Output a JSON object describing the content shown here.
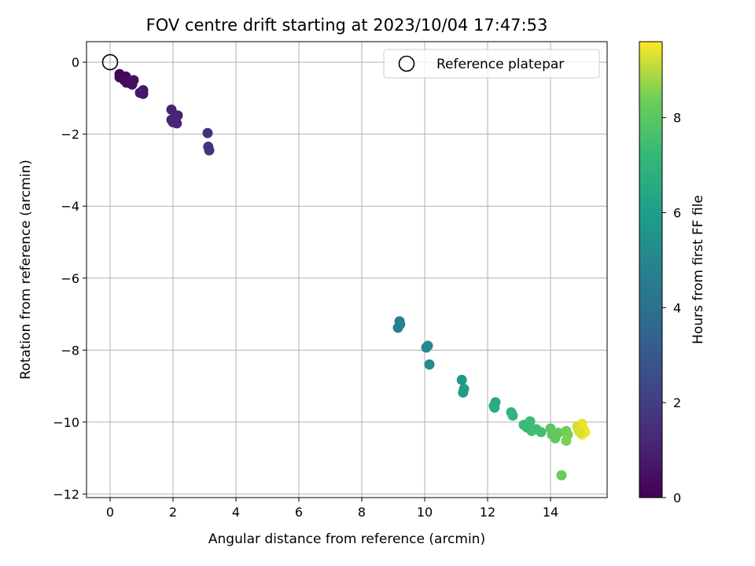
{
  "chart_data": {
    "type": "scatter",
    "title": "FOV centre drift starting at 2023/10/04 17:47:53",
    "xlabel": "Angular distance from reference (arcmin)",
    "ylabel": "Rotation from reference (arcmin)",
    "xlim": [
      -0.75,
      15.8
    ],
    "ylim": [
      -12.1,
      0.57
    ],
    "xticks": [
      0,
      2,
      4,
      6,
      8,
      10,
      12,
      14
    ],
    "xtick_labels": [
      "0",
      "2",
      "4",
      "6",
      "8",
      "10",
      "12",
      "14"
    ],
    "yticks": [
      0,
      -2,
      -4,
      -6,
      -8,
      -10,
      -12
    ],
    "ytick_labels": [
      "0",
      "−2",
      "−4",
      "−6",
      "−8",
      "−10",
      "−12"
    ],
    "grid": true,
    "legend": {
      "placement": "top-right",
      "entries": [
        "Reference platepar"
      ]
    },
    "reference_point": {
      "x": 0,
      "y": 0
    },
    "colorbar": {
      "label": "Hours from first FF file",
      "colormap": "viridis",
      "range": [
        0,
        9.6
      ],
      "ticks": [
        0,
        2,
        4,
        6,
        8
      ],
      "tick_labels": [
        "0",
        "2",
        "4",
        "6",
        "8"
      ]
    },
    "points": [
      {
        "x": 0.3,
        "y": -0.33,
        "h": 0.05
      },
      {
        "x": 0.35,
        "y": -0.4,
        "h": 0.1
      },
      {
        "x": 0.3,
        "y": -0.42,
        "h": 0.15
      },
      {
        "x": 0.45,
        "y": -0.5,
        "h": 0.2
      },
      {
        "x": 0.5,
        "y": -0.4,
        "h": 0.25
      },
      {
        "x": 0.52,
        "y": -0.57,
        "h": 0.3
      },
      {
        "x": 0.6,
        "y": -0.52,
        "h": 0.35
      },
      {
        "x": 0.7,
        "y": -0.62,
        "h": 0.4
      },
      {
        "x": 0.75,
        "y": -0.5,
        "h": 0.45
      },
      {
        "x": 1.05,
        "y": -0.78,
        "h": 0.6
      },
      {
        "x": 1.05,
        "y": -0.88,
        "h": 0.65
      },
      {
        "x": 0.95,
        "y": -0.85,
        "h": 0.7
      },
      {
        "x": 1.95,
        "y": -1.32,
        "h": 1.0
      },
      {
        "x": 2.15,
        "y": -1.48,
        "h": 1.05
      },
      {
        "x": 1.95,
        "y": -1.6,
        "h": 1.1
      },
      {
        "x": 2.0,
        "y": -1.67,
        "h": 1.15
      },
      {
        "x": 2.12,
        "y": -1.7,
        "h": 1.2
      },
      {
        "x": 2.05,
        "y": -1.63,
        "h": 1.15
      },
      {
        "x": 3.1,
        "y": -1.97,
        "h": 1.55
      },
      {
        "x": 3.12,
        "y": -2.35,
        "h": 1.6
      },
      {
        "x": 3.15,
        "y": -2.45,
        "h": 1.65
      },
      {
        "x": 9.2,
        "y": -7.2,
        "h": 4.65
      },
      {
        "x": 9.22,
        "y": -7.28,
        "h": 4.7
      },
      {
        "x": 9.15,
        "y": -7.38,
        "h": 4.75
      },
      {
        "x": 10.1,
        "y": -7.88,
        "h": 5.0
      },
      {
        "x": 10.05,
        "y": -7.93,
        "h": 5.05
      },
      {
        "x": 10.15,
        "y": -8.4,
        "h": 5.15
      },
      {
        "x": 11.18,
        "y": -8.83,
        "h": 5.8
      },
      {
        "x": 11.25,
        "y": -9.08,
        "h": 5.85
      },
      {
        "x": 11.22,
        "y": -9.18,
        "h": 5.9
      },
      {
        "x": 12.25,
        "y": -9.45,
        "h": 6.5
      },
      {
        "x": 12.2,
        "y": -9.55,
        "h": 6.55
      },
      {
        "x": 12.22,
        "y": -9.6,
        "h": 6.6
      },
      {
        "x": 12.75,
        "y": -9.73,
        "h": 7.0
      },
      {
        "x": 12.8,
        "y": -9.82,
        "h": 7.05
      },
      {
        "x": 13.15,
        "y": -10.08,
        "h": 7.3
      },
      {
        "x": 13.25,
        "y": -10.15,
        "h": 7.35
      },
      {
        "x": 13.35,
        "y": -9.98,
        "h": 7.4
      },
      {
        "x": 13.4,
        "y": -10.25,
        "h": 7.45
      },
      {
        "x": 13.55,
        "y": -10.2,
        "h": 7.5
      },
      {
        "x": 13.7,
        "y": -10.28,
        "h": 7.55
      },
      {
        "x": 14.0,
        "y": -10.18,
        "h": 8.0
      },
      {
        "x": 14.05,
        "y": -10.35,
        "h": 8.05
      },
      {
        "x": 14.15,
        "y": -10.45,
        "h": 8.1
      },
      {
        "x": 14.25,
        "y": -10.3,
        "h": 8.15
      },
      {
        "x": 14.5,
        "y": -10.25,
        "h": 8.4
      },
      {
        "x": 14.55,
        "y": -10.35,
        "h": 8.45
      },
      {
        "x": 14.5,
        "y": -10.52,
        "h": 8.5
      },
      {
        "x": 14.35,
        "y": -11.48,
        "h": 8.3
      },
      {
        "x": 14.85,
        "y": -10.12,
        "h": 9.2
      },
      {
        "x": 14.9,
        "y": -10.25,
        "h": 9.25
      },
      {
        "x": 15.0,
        "y": -10.05,
        "h": 9.4
      },
      {
        "x": 15.05,
        "y": -10.2,
        "h": 9.45
      },
      {
        "x": 15.1,
        "y": -10.28,
        "h": 9.5
      },
      {
        "x": 15.0,
        "y": -10.35,
        "h": 9.55
      },
      {
        "x": 14.95,
        "y": -10.3,
        "h": 9.3
      }
    ]
  }
}
